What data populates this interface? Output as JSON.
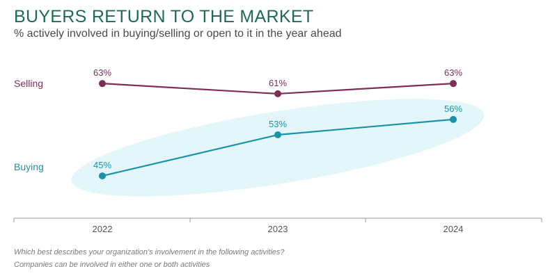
{
  "title": "BUYERS RETURN TO THE MARKET",
  "subtitle": "% actively involved in buying/selling or open to it in the year ahead",
  "footnotes": [
    "Which best describes your organization's involvement in the following activities?",
    "Companies can be involved in either one or both activities"
  ],
  "colors": {
    "title": "#1e6b52",
    "selling": "#7d2e57",
    "buying": "#1a93a8",
    "highlight": "#e3f6fa"
  },
  "chart_data": {
    "type": "line",
    "x": [
      "2022",
      "2023",
      "2024"
    ],
    "ylim": [
      40,
      66
    ],
    "grid": false,
    "legend": "left",
    "series": [
      {
        "name": "Selling",
        "values": [
          63,
          61,
          63
        ],
        "labels": [
          "63%",
          "61%",
          "63%"
        ],
        "color": "#7d2e57"
      },
      {
        "name": "Buying",
        "values": [
          45,
          53,
          56
        ],
        "labels": [
          "45%",
          "53%",
          "56%"
        ],
        "color": "#1a93a8"
      }
    ],
    "annotation": "Buying series highlighted with light blue ellipse"
  }
}
